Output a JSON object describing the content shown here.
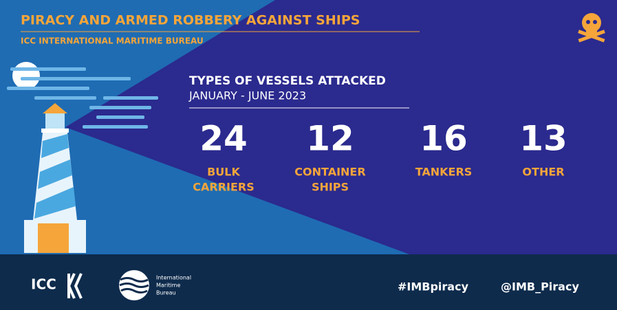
{
  "header": {
    "title": "PIRACY AND ARMED ROBBERY AGAINST SHIPS",
    "subtitle": "ICC INTERNATIONAL MARITIME BUREAU"
  },
  "panel": {
    "title": "TYPES OF VESSELS ATTACKED",
    "period": "JANUARY - JUNE 2023"
  },
  "stats": [
    {
      "value": 24,
      "label": [
        "BULK",
        "CARRIERS"
      ]
    },
    {
      "value": 12,
      "label": [
        "CONTAINER",
        "SHIPS"
      ]
    },
    {
      "value": 16,
      "label": [
        "TANKERS"
      ]
    },
    {
      "value": 13,
      "label": [
        "OTHER"
      ]
    }
  ],
  "footer": {
    "icc_logo": "ICC",
    "imb_logo": [
      "International",
      "Maritime",
      "Bureau"
    ],
    "hashtag": "#IMBpiracy",
    "handle": "@IMB_Piracy"
  }
}
